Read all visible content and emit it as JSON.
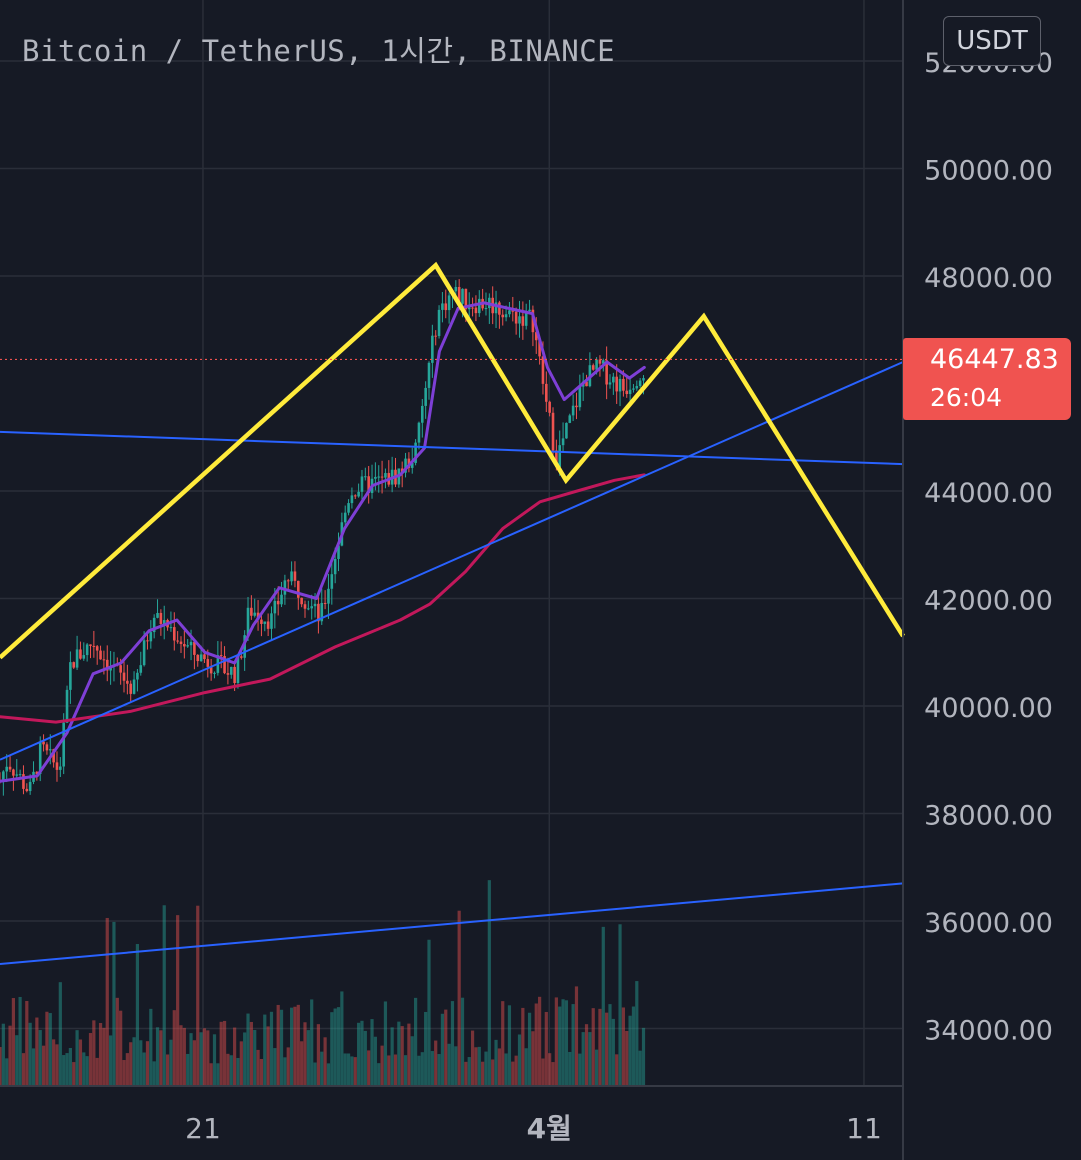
{
  "header": {
    "symbol_title": "Bitcoin / TetherUS, 1시간, BINANCE",
    "currency_button": "USDT"
  },
  "price_badge": {
    "price": "46447.83",
    "countdown": "26:04",
    "color": "#f05350"
  },
  "colors": {
    "background": "#161a25",
    "grid": "#2a2e39",
    "axis_text": "#b2b5be",
    "up_candle": "#26a69a",
    "down_candle": "#ef5350",
    "pattern_line": "#ffeb3b",
    "trend_line": "#2962ff",
    "ma_fast": "#7e3fd6",
    "ma_slow": "#c2185b"
  },
  "chart_data": {
    "type": "candlestick",
    "y_axis": {
      "range": [
        33000,
        53500
      ],
      "tick_labels": [
        "52000.00",
        "50000.00",
        "48000.00",
        "44000.00",
        "42000.00",
        "40000.00",
        "38000.00",
        "36000.00",
        "34000.00"
      ]
    },
    "x_axis": {
      "tick_labels": [
        "21",
        "4월",
        "11"
      ]
    },
    "last_price": 46447.83,
    "candle_path": [
      [
        0,
        38600
      ],
      [
        0.4,
        39000
      ],
      [
        1.6,
        38400
      ],
      [
        2.2,
        39200
      ],
      [
        3.2,
        38800
      ],
      [
        3.8,
        40800
      ],
      [
        5,
        41200
      ],
      [
        5.8,
        40800
      ],
      [
        7.2,
        40300
      ],
      [
        8.2,
        41700
      ],
      [
        9,
        41500
      ],
      [
        10.3,
        41000
      ],
      [
        12,
        40700
      ],
      [
        12.7,
        40600
      ],
      [
        13.4,
        41800
      ],
      [
        14.6,
        41600
      ],
      [
        15.4,
        42400
      ],
      [
        16.2,
        42100
      ],
      [
        17.2,
        41600
      ],
      [
        18.8,
        44000
      ],
      [
        19.6,
        44100
      ],
      [
        20.6,
        44200
      ],
      [
        21.3,
        44300
      ],
      [
        22.3,
        44700
      ],
      [
        23.5,
        47300
      ],
      [
        24.3,
        47700
      ],
      [
        25.2,
        47500
      ],
      [
        26.3,
        47500
      ],
      [
        27.3,
        47300
      ],
      [
        28.6,
        47200
      ],
      [
        29.4,
        45500
      ],
      [
        29.9,
        44600
      ],
      [
        30.5,
        45200
      ],
      [
        31.4,
        46100
      ],
      [
        32.2,
        46300
      ],
      [
        33.5,
        45900
      ],
      [
        34.6,
        46300
      ]
    ],
    "volume_range": [
      0,
      4000
    ],
    "series": [
      {
        "name": "",
        "kind": "moving_average",
        "color": "#7e3fd6",
        "points": [
          [
            0,
            38600
          ],
          [
            2,
            38700
          ],
          [
            3.6,
            39500
          ],
          [
            5,
            40600
          ],
          [
            6.5,
            40800
          ],
          [
            8,
            41400
          ],
          [
            9.5,
            41600
          ],
          [
            11,
            41000
          ],
          [
            12.6,
            40800
          ],
          [
            13.6,
            41500
          ],
          [
            15,
            42200
          ],
          [
            17,
            42000
          ],
          [
            18.5,
            43300
          ],
          [
            20,
            44100
          ],
          [
            21.5,
            44300
          ],
          [
            22.8,
            44800
          ],
          [
            23.6,
            46600
          ],
          [
            24.6,
            47400
          ],
          [
            26,
            47500
          ],
          [
            28.6,
            47300
          ],
          [
            29.4,
            46300
          ],
          [
            30.3,
            45700
          ],
          [
            31.3,
            46000
          ],
          [
            32.6,
            46400
          ],
          [
            33.8,
            46100
          ],
          [
            34.6,
            46300
          ]
        ]
      },
      {
        "name": "",
        "kind": "moving_average",
        "color": "#c2185b",
        "points": [
          [
            0,
            39800
          ],
          [
            3,
            39700
          ],
          [
            7,
            39900
          ],
          [
            11,
            40250
          ],
          [
            14.5,
            40500
          ],
          [
            18,
            41100
          ],
          [
            21.5,
            41600
          ],
          [
            23.1,
            41900
          ],
          [
            25,
            42500
          ],
          [
            27,
            43300
          ],
          [
            29,
            43800
          ],
          [
            31,
            44000
          ],
          [
            33,
            44200
          ],
          [
            34.6,
            44300
          ]
        ]
      }
    ],
    "trend_lines": [
      {
        "color": "#2962ff",
        "from": [
          0,
          45100
        ],
        "to": [
          48.5,
          44500
        ]
      },
      {
        "color": "#2962ff",
        "from": [
          0,
          39000
        ],
        "to": [
          48.5,
          46400
        ]
      },
      {
        "color": "#2962ff",
        "from": [
          0,
          35200
        ],
        "to": [
          48.5,
          36700
        ]
      }
    ],
    "pattern_line": {
      "color": "#ffeb3b",
      "points": [
        [
          0,
          40900
        ],
        [
          23.4,
          48200
        ],
        [
          30.4,
          44200
        ],
        [
          37.8,
          47250
        ],
        [
          48.5,
          41300
        ]
      ]
    }
  }
}
